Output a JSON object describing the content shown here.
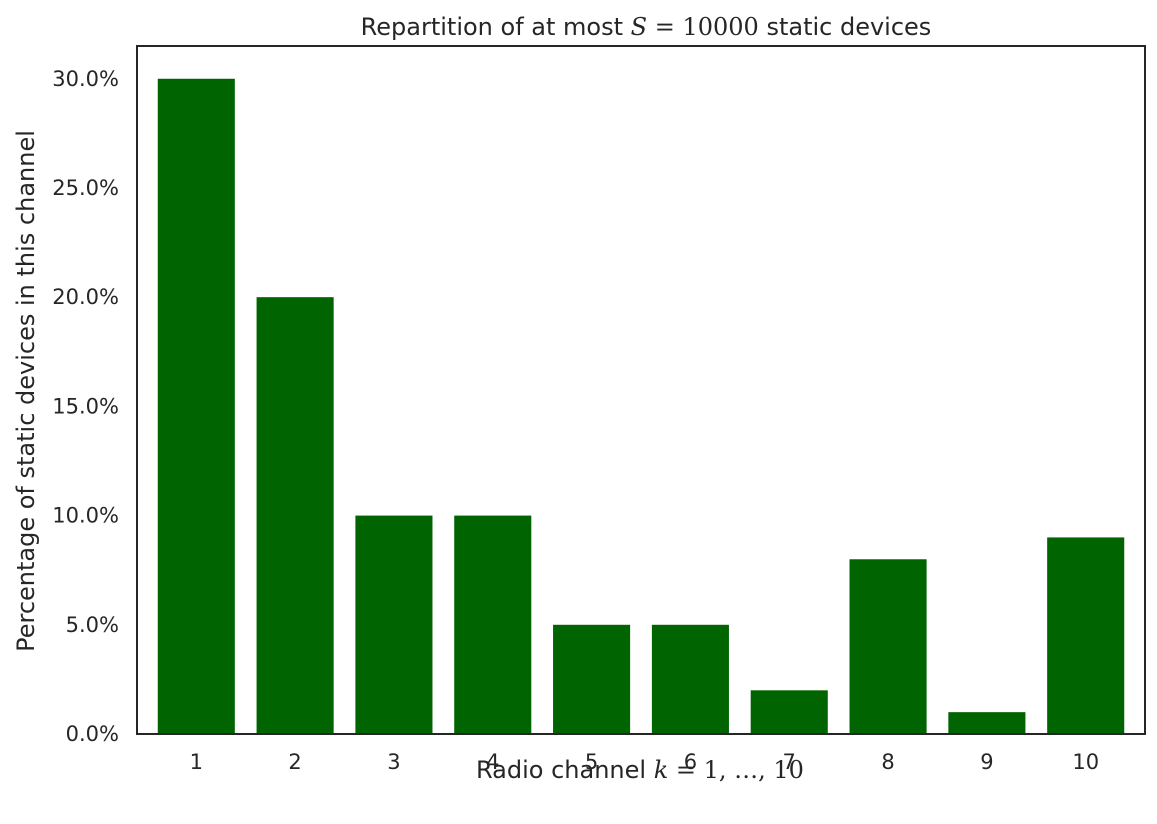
{
  "chart_data": {
    "type": "bar",
    "title_prefix": "Repartition of at most ",
    "title_math_var": "S",
    "title_math_rest": " = 10000",
    "title_suffix": " static devices",
    "xlabel_prefix": "Radio channel ",
    "xlabel_math_var": "k",
    "xlabel_math_rest": " = 1, …, 10",
    "ylabel": "Percentage of static devices in this channel",
    "categories": [
      "1",
      "2",
      "3",
      "4",
      "5",
      "6",
      "7",
      "8",
      "9",
      "10"
    ],
    "values": [
      0.3,
      0.2,
      0.1,
      0.1,
      0.05,
      0.05,
      0.02,
      0.08,
      0.01,
      0.09
    ],
    "yticks": [
      0.0,
      0.05,
      0.1,
      0.15,
      0.2,
      0.25,
      0.3
    ],
    "ytick_labels": [
      "0.0%",
      "5.0%",
      "10.0%",
      "15.0%",
      "20.0%",
      "25.0%",
      "30.0%"
    ],
    "ylim": [
      0,
      0.315
    ],
    "grid": false,
    "bar_color": "#006400",
    "axis_color": "#262626"
  }
}
